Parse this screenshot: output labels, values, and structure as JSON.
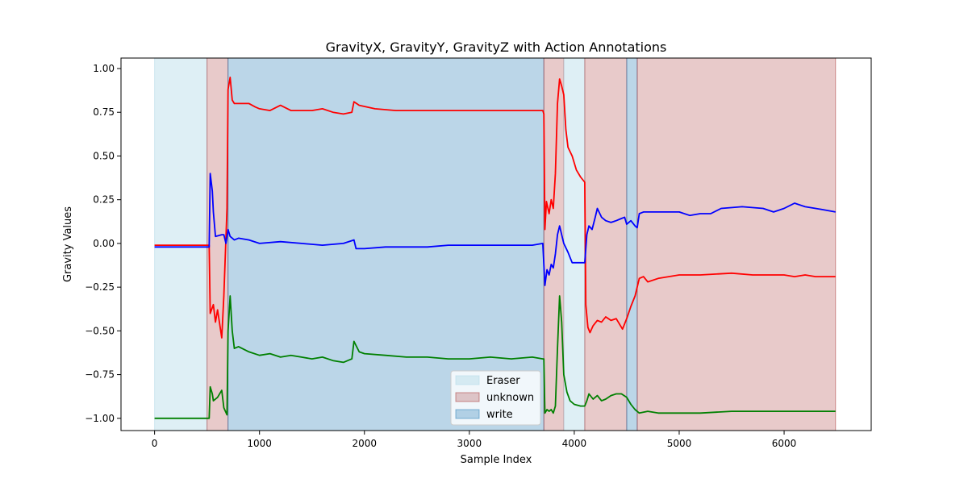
{
  "chart_data": {
    "type": "line",
    "title": "GravityX, GravityY, GravityZ with Action Annotations",
    "xlabel": "Sample Index",
    "ylabel": "Gravity Values",
    "xlim": [
      -320,
      6830
    ],
    "ylim": [
      -1.07,
      1.06
    ],
    "x_ticks": [
      0,
      1000,
      2000,
      3000,
      4000,
      5000,
      6000
    ],
    "y_ticks": [
      1.0,
      0.75,
      0.5,
      0.25,
      0.0,
      -0.25,
      -0.5,
      -0.75,
      -1.0
    ],
    "x_tick_labels": [
      "0",
      "1000",
      "2000",
      "3000",
      "4000",
      "5000",
      "6000"
    ],
    "y_tick_labels": [
      "1.00",
      "0.75",
      "0.50",
      "0.25",
      "0.00",
      "−0.25",
      "−0.50",
      "−0.75",
      "−1.00"
    ],
    "grid": false,
    "legend_position": "lower-center",
    "legend": [
      {
        "label": "Eraser",
        "color": "#add8e6",
        "opacity": 0.4
      },
      {
        "label": "unknown",
        "color": "#a52a2a",
        "opacity": 0.25
      },
      {
        "label": "write",
        "color": "#1f77b4",
        "opacity": 0.3
      }
    ],
    "spans": [
      {
        "start": 0,
        "end": 500,
        "label": "Eraser"
      },
      {
        "start": 500,
        "end": 700,
        "label": "unknown"
      },
      {
        "start": 700,
        "end": 3710,
        "label": "write"
      },
      {
        "start": 3710,
        "end": 3900,
        "label": "unknown"
      },
      {
        "start": 3900,
        "end": 4100,
        "label": "Eraser"
      },
      {
        "start": 4100,
        "end": 4500,
        "label": "unknown"
      },
      {
        "start": 4500,
        "end": 4600,
        "label": "write"
      },
      {
        "start": 4600,
        "end": 6490,
        "label": "unknown"
      }
    ],
    "series": [
      {
        "color": "#ff0000",
        "points": [
          [
            0,
            -0.01
          ],
          [
            520,
            -0.01
          ],
          [
            530,
            -0.4
          ],
          [
            560,
            -0.35
          ],
          [
            580,
            -0.45
          ],
          [
            600,
            -0.38
          ],
          [
            640,
            -0.54
          ],
          [
            660,
            -0.3
          ],
          [
            690,
            0.2
          ],
          [
            700,
            0.88
          ],
          [
            720,
            0.95
          ],
          [
            740,
            0.82
          ],
          [
            760,
            0.8
          ],
          [
            900,
            0.8
          ],
          [
            960,
            0.78
          ],
          [
            1000,
            0.77
          ],
          [
            1100,
            0.76
          ],
          [
            1200,
            0.79
          ],
          [
            1300,
            0.76
          ],
          [
            1500,
            0.76
          ],
          [
            1600,
            0.77
          ],
          [
            1700,
            0.75
          ],
          [
            1800,
            0.74
          ],
          [
            1880,
            0.75
          ],
          [
            1900,
            0.81
          ],
          [
            1950,
            0.79
          ],
          [
            2100,
            0.77
          ],
          [
            2300,
            0.76
          ],
          [
            2500,
            0.76
          ],
          [
            2700,
            0.76
          ],
          [
            3000,
            0.76
          ],
          [
            3200,
            0.76
          ],
          [
            3400,
            0.76
          ],
          [
            3600,
            0.76
          ],
          [
            3700,
            0.76
          ],
          [
            3710,
            0.74
          ],
          [
            3720,
            0.08
          ],
          [
            3735,
            0.24
          ],
          [
            3760,
            0.17
          ],
          [
            3780,
            0.25
          ],
          [
            3800,
            0.2
          ],
          [
            3820,
            0.4
          ],
          [
            3840,
            0.8
          ],
          [
            3860,
            0.94
          ],
          [
            3880,
            0.9
          ],
          [
            3900,
            0.85
          ],
          [
            3920,
            0.65
          ],
          [
            3940,
            0.55
          ],
          [
            3980,
            0.5
          ],
          [
            4020,
            0.42
          ],
          [
            4060,
            0.38
          ],
          [
            4100,
            0.35
          ],
          [
            4110,
            -0.35
          ],
          [
            4130,
            -0.48
          ],
          [
            4150,
            -0.51
          ],
          [
            4180,
            -0.47
          ],
          [
            4220,
            -0.44
          ],
          [
            4260,
            -0.45
          ],
          [
            4300,
            -0.42
          ],
          [
            4350,
            -0.44
          ],
          [
            4400,
            -0.43
          ],
          [
            4430,
            -0.46
          ],
          [
            4460,
            -0.49
          ],
          [
            4500,
            -0.43
          ],
          [
            4540,
            -0.36
          ],
          [
            4580,
            -0.3
          ],
          [
            4620,
            -0.2
          ],
          [
            4660,
            -0.19
          ],
          [
            4700,
            -0.22
          ],
          [
            4800,
            -0.2
          ],
          [
            4900,
            -0.19
          ],
          [
            5000,
            -0.18
          ],
          [
            5200,
            -0.18
          ],
          [
            5500,
            -0.17
          ],
          [
            5700,
            -0.18
          ],
          [
            6000,
            -0.18
          ],
          [
            6100,
            -0.19
          ],
          [
            6200,
            -0.18
          ],
          [
            6300,
            -0.19
          ],
          [
            6400,
            -0.19
          ],
          [
            6490,
            -0.19
          ]
        ]
      },
      {
        "color": "#0000ff",
        "points": [
          [
            0,
            -0.02
          ],
          [
            520,
            -0.02
          ],
          [
            530,
            0.4
          ],
          [
            550,
            0.3
          ],
          [
            560,
            0.18
          ],
          [
            580,
            0.04
          ],
          [
            640,
            0.05
          ],
          [
            660,
            0.05
          ],
          [
            680,
            0.0
          ],
          [
            700,
            0.08
          ],
          [
            720,
            0.04
          ],
          [
            760,
            0.02
          ],
          [
            800,
            0.03
          ],
          [
            900,
            0.02
          ],
          [
            1000,
            0.0
          ],
          [
            1200,
            0.01
          ],
          [
            1400,
            0.0
          ],
          [
            1600,
            -0.01
          ],
          [
            1800,
            0.0
          ],
          [
            1900,
            0.02
          ],
          [
            1920,
            -0.03
          ],
          [
            2000,
            -0.03
          ],
          [
            2200,
            -0.02
          ],
          [
            2400,
            -0.02
          ],
          [
            2600,
            -0.02
          ],
          [
            2800,
            -0.01
          ],
          [
            3000,
            -0.01
          ],
          [
            3200,
            -0.01
          ],
          [
            3400,
            -0.01
          ],
          [
            3600,
            -0.01
          ],
          [
            3700,
            0.0
          ],
          [
            3720,
            -0.24
          ],
          [
            3740,
            -0.15
          ],
          [
            3760,
            -0.18
          ],
          [
            3780,
            -0.12
          ],
          [
            3800,
            -0.14
          ],
          [
            3820,
            -0.06
          ],
          [
            3840,
            0.05
          ],
          [
            3860,
            0.1
          ],
          [
            3880,
            0.05
          ],
          [
            3900,
            0.0
          ],
          [
            3940,
            -0.05
          ],
          [
            3980,
            -0.11
          ],
          [
            4040,
            -0.11
          ],
          [
            4100,
            -0.11
          ],
          [
            4120,
            0.05
          ],
          [
            4140,
            0.1
          ],
          [
            4170,
            0.08
          ],
          [
            4200,
            0.15
          ],
          [
            4220,
            0.2
          ],
          [
            4260,
            0.15
          ],
          [
            4300,
            0.13
          ],
          [
            4350,
            0.12
          ],
          [
            4400,
            0.13
          ],
          [
            4440,
            0.14
          ],
          [
            4480,
            0.15
          ],
          [
            4500,
            0.11
          ],
          [
            4540,
            0.13
          ],
          [
            4580,
            0.1
          ],
          [
            4600,
            0.09
          ],
          [
            4620,
            0.17
          ],
          [
            4660,
            0.18
          ],
          [
            4800,
            0.18
          ],
          [
            5000,
            0.18
          ],
          [
            5100,
            0.16
          ],
          [
            5200,
            0.17
          ],
          [
            5300,
            0.17
          ],
          [
            5400,
            0.2
          ],
          [
            5600,
            0.21
          ],
          [
            5800,
            0.2
          ],
          [
            5900,
            0.18
          ],
          [
            6000,
            0.2
          ],
          [
            6100,
            0.23
          ],
          [
            6200,
            0.21
          ],
          [
            6300,
            0.2
          ],
          [
            6400,
            0.19
          ],
          [
            6490,
            0.18
          ]
        ]
      },
      {
        "color": "#008000",
        "points": [
          [
            0,
            -1.0
          ],
          [
            520,
            -1.0
          ],
          [
            530,
            -0.82
          ],
          [
            550,
            -0.86
          ],
          [
            560,
            -0.9
          ],
          [
            600,
            -0.88
          ],
          [
            640,
            -0.84
          ],
          [
            660,
            -0.94
          ],
          [
            690,
            -0.98
          ],
          [
            700,
            -0.5
          ],
          [
            720,
            -0.3
          ],
          [
            740,
            -0.5
          ],
          [
            760,
            -0.6
          ],
          [
            800,
            -0.59
          ],
          [
            900,
            -0.62
          ],
          [
            1000,
            -0.64
          ],
          [
            1100,
            -0.63
          ],
          [
            1200,
            -0.65
          ],
          [
            1300,
            -0.64
          ],
          [
            1400,
            -0.65
          ],
          [
            1500,
            -0.66
          ],
          [
            1600,
            -0.65
          ],
          [
            1700,
            -0.67
          ],
          [
            1800,
            -0.68
          ],
          [
            1880,
            -0.66
          ],
          [
            1900,
            -0.56
          ],
          [
            1950,
            -0.62
          ],
          [
            2000,
            -0.63
          ],
          [
            2200,
            -0.64
          ],
          [
            2400,
            -0.65
          ],
          [
            2600,
            -0.65
          ],
          [
            2800,
            -0.66
          ],
          [
            3000,
            -0.66
          ],
          [
            3200,
            -0.65
          ],
          [
            3400,
            -0.66
          ],
          [
            3600,
            -0.65
          ],
          [
            3700,
            -0.66
          ],
          [
            3710,
            -0.66
          ],
          [
            3720,
            -0.97
          ],
          [
            3740,
            -0.95
          ],
          [
            3760,
            -0.96
          ],
          [
            3780,
            -0.95
          ],
          [
            3800,
            -0.97
          ],
          [
            3820,
            -0.93
          ],
          [
            3840,
            -0.6
          ],
          [
            3860,
            -0.3
          ],
          [
            3880,
            -0.45
          ],
          [
            3900,
            -0.75
          ],
          [
            3930,
            -0.85
          ],
          [
            3960,
            -0.9
          ],
          [
            4000,
            -0.92
          ],
          [
            4060,
            -0.93
          ],
          [
            4100,
            -0.93
          ],
          [
            4120,
            -0.9
          ],
          [
            4140,
            -0.86
          ],
          [
            4180,
            -0.89
          ],
          [
            4220,
            -0.87
          ],
          [
            4260,
            -0.9
          ],
          [
            4300,
            -0.89
          ],
          [
            4350,
            -0.87
          ],
          [
            4400,
            -0.86
          ],
          [
            4450,
            -0.86
          ],
          [
            4500,
            -0.88
          ],
          [
            4540,
            -0.92
          ],
          [
            4580,
            -0.95
          ],
          [
            4620,
            -0.97
          ],
          [
            4700,
            -0.96
          ],
          [
            4800,
            -0.97
          ],
          [
            5000,
            -0.97
          ],
          [
            5200,
            -0.97
          ],
          [
            5500,
            -0.96
          ],
          [
            5800,
            -0.96
          ],
          [
            6000,
            -0.96
          ],
          [
            6200,
            -0.96
          ],
          [
            6490,
            -0.96
          ]
        ]
      }
    ]
  }
}
